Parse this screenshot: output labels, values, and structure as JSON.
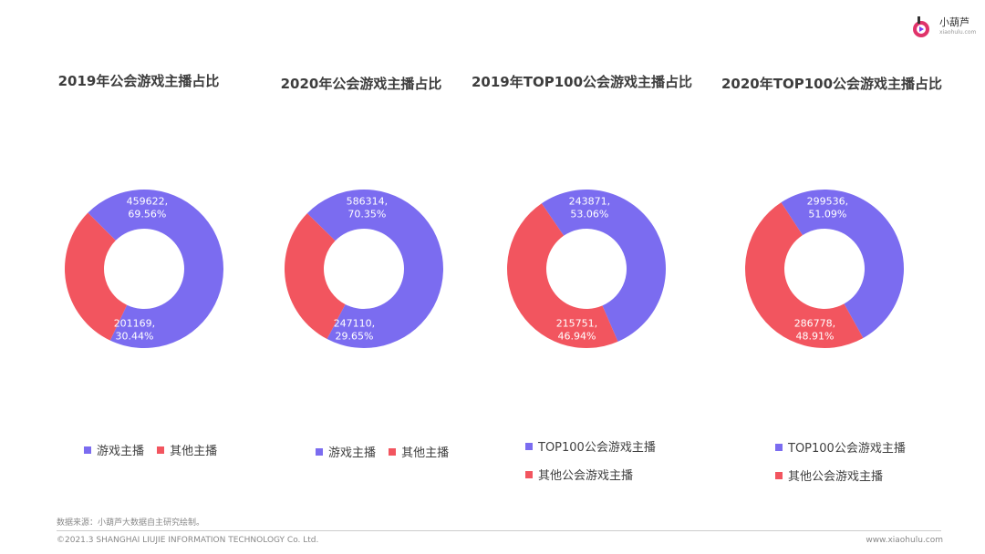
{
  "brand": {
    "name": "小葫芦",
    "url_small": "xiaohulu.com"
  },
  "colors": {
    "purple": "#7b6cf0",
    "red": "#f2555f"
  },
  "chart_data": [
    {
      "type": "pie",
      "title": "2019年公会游戏主播占比",
      "series": [
        {
          "name": "游戏主播",
          "value": 459622,
          "percent": "69.56%"
        },
        {
          "name": "其他主播",
          "value": 201169,
          "percent": "30.44%"
        }
      ],
      "legend": [
        "游戏主播",
        "其他主播"
      ],
      "labels": [
        "459622,",
        "69.56%",
        "201169,",
        "30.44%"
      ]
    },
    {
      "type": "pie",
      "title": "2020年公会游戏主播占比",
      "series": [
        {
          "name": "游戏主播",
          "value": 586314,
          "percent": "70.35%"
        },
        {
          "name": "其他主播",
          "value": 247110,
          "percent": "29.65%"
        }
      ],
      "legend": [
        "游戏主播",
        "其他主播"
      ],
      "labels": [
        "586314,",
        "70.35%",
        "247110,",
        "29.65%"
      ]
    },
    {
      "type": "pie",
      "title": "2019年TOP100公会游戏主播占比",
      "series": [
        {
          "name": "TOP100公会游戏主播",
          "value": 243871,
          "percent": "53.06%"
        },
        {
          "name": "其他公会游戏主播",
          "value": 215751,
          "percent": "46.94%"
        }
      ],
      "legend": [
        "TOP100公会游戏主播",
        "其他公会游戏主播"
      ],
      "labels": [
        "243871,",
        "53.06%",
        "215751,",
        "46.94%"
      ]
    },
    {
      "type": "pie",
      "title": "2020年TOP100公会游戏主播占比",
      "series": [
        {
          "name": "TOP100公会游戏主播",
          "value": 299536,
          "percent": "51.09%"
        },
        {
          "name": "其他公会游戏主播",
          "value": 286778,
          "percent": "48.91%"
        }
      ],
      "legend": [
        "TOP100公会游戏主播",
        "其他公会游戏主播"
      ],
      "labels": [
        "299536,",
        "51.09%",
        "286778,",
        "48.91%"
      ]
    }
  ],
  "source": "数据来源：小葫芦大数据自主研究绘制。",
  "copyright": "©2021.3 SHANGHAI LIUJIE INFORMATION TECHNOLOGY Co. Ltd.",
  "website": "www.xiaohulu.com"
}
